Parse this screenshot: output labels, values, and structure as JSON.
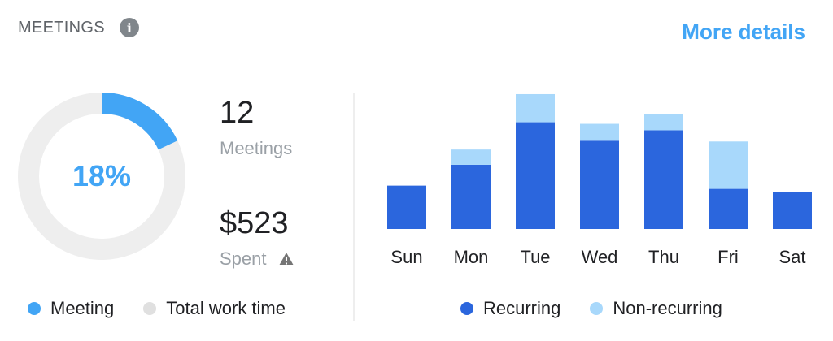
{
  "header": {
    "title": "MEETINGS",
    "more_details": "More details"
  },
  "donut": {
    "percent_label": "18%",
    "fraction": 0.18,
    "meeting_color": "#42a5f5",
    "track_color": "#eeeeee"
  },
  "stats": {
    "meetings_value": "12",
    "meetings_label": "Meetings",
    "spent_value": "$523",
    "spent_label": "Spent"
  },
  "left_legend": {
    "meeting": "Meeting",
    "total": "Total work time"
  },
  "chart_data": {
    "type": "bar",
    "stacked": true,
    "categories": [
      "Sun",
      "Mon",
      "Tue",
      "Wed",
      "Thu",
      "Fri",
      "Sat"
    ],
    "series": [
      {
        "name": "Recurring",
        "color": "#2b66dd",
        "values": [
          5.4,
          8.0,
          13.3,
          11.0,
          12.3,
          5.0,
          4.6
        ]
      },
      {
        "name": "Non-recurring",
        "color": "#a8d8fb",
        "values": [
          0,
          1.9,
          3.5,
          2.1,
          2.0,
          5.9,
          0
        ]
      }
    ],
    "ylim": [
      0,
      17
    ]
  },
  "right_legend": {
    "recurring": "Recurring",
    "nonrecurring": "Non-recurring"
  }
}
